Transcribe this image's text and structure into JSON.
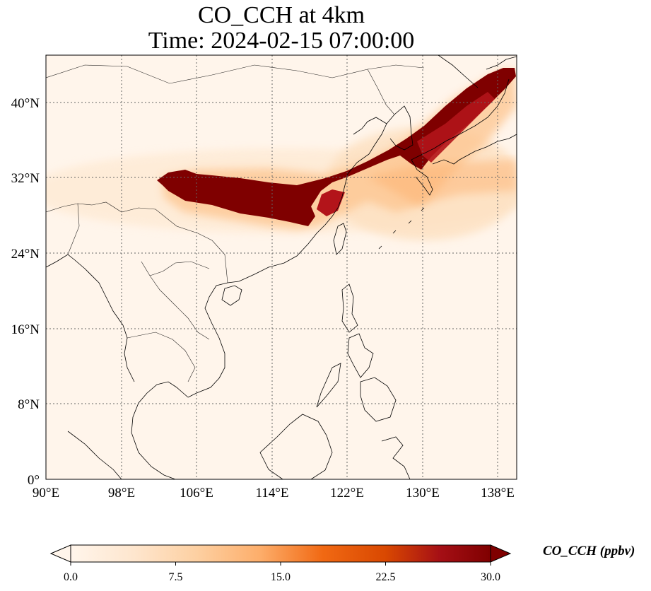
{
  "title": {
    "line1": "CO_CCH at 4km",
    "line2": "Time: 2024-02-15 07:00:00"
  },
  "map": {
    "lon_ticks": [
      "90°E",
      "98°E",
      "106°E",
      "114°E",
      "122°E",
      "130°E",
      "138°E"
    ],
    "lat_ticks": [
      "0°",
      "8°N",
      "16°N",
      "24°N",
      "32°N",
      "40°N"
    ],
    "lon_range": [
      90,
      140
    ],
    "lat_range": [
      0,
      45
    ],
    "gridlines": "dotted"
  },
  "colorbar": {
    "label": "CO_CCH (ppbv)",
    "ticks": [
      "0.0",
      "7.5",
      "15.0",
      "22.5",
      "30.0"
    ],
    "colors": [
      "#fff5eb",
      "#fee6ce",
      "#fdd0a2",
      "#fdae6b",
      "#fd8d3c",
      "#f16913",
      "#d94801",
      "#a50f15",
      "#7f0000"
    ],
    "extend": "both"
  }
}
